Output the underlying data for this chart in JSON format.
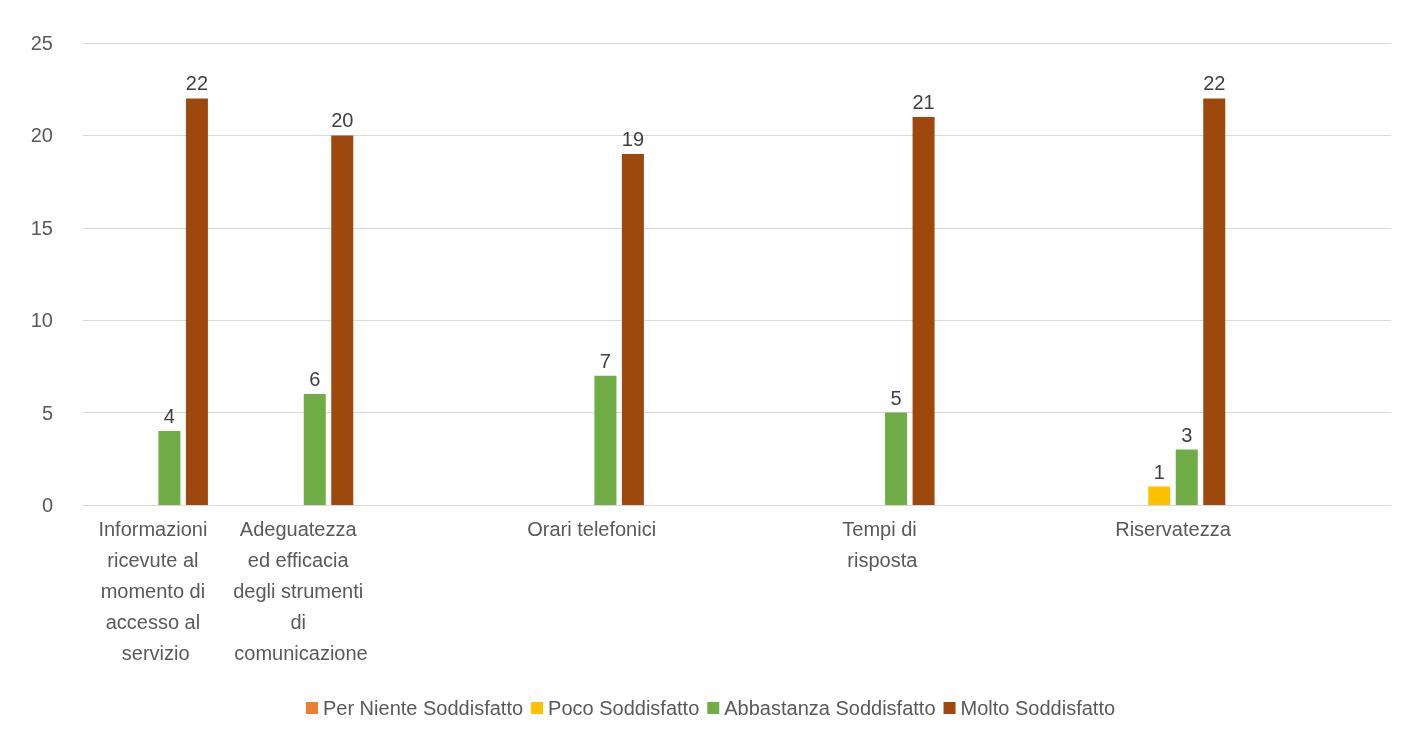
{
  "chart_data": {
    "type": "bar",
    "categories": [
      "Informazioni ricevute al momento di accesso al servizio",
      "Adeguatezza ed efficacia degli strumenti di comunicazione",
      null,
      "Orari telefonici",
      null,
      "Tempi di risposta",
      null,
      "Riservatezza",
      null
    ],
    "series": [
      {
        "name": "Per Niente Soddisfatto",
        "color": "#ed7d31",
        "values": [
          null,
          null,
          null,
          null,
          null,
          null,
          null,
          null,
          null
        ]
      },
      {
        "name": "Poco Soddisfatto",
        "color": "#ffc000",
        "values": [
          null,
          null,
          null,
          null,
          null,
          null,
          null,
          1,
          null
        ]
      },
      {
        "name": "Abbastanza Soddisfatto",
        "color": "#70ad47",
        "values": [
          4,
          6,
          null,
          7,
          null,
          5,
          null,
          3,
          null
        ]
      },
      {
        "name": "Molto Soddisfatto",
        "color": "#9e480e",
        "values": [
          22,
          20,
          null,
          19,
          null,
          21,
          null,
          22,
          null
        ]
      }
    ],
    "ylim": [
      0,
      25
    ],
    "yticks": [
      0,
      5,
      10,
      15,
      20,
      25
    ],
    "grid": "y",
    "legend": "bottom",
    "data_labels": true
  }
}
